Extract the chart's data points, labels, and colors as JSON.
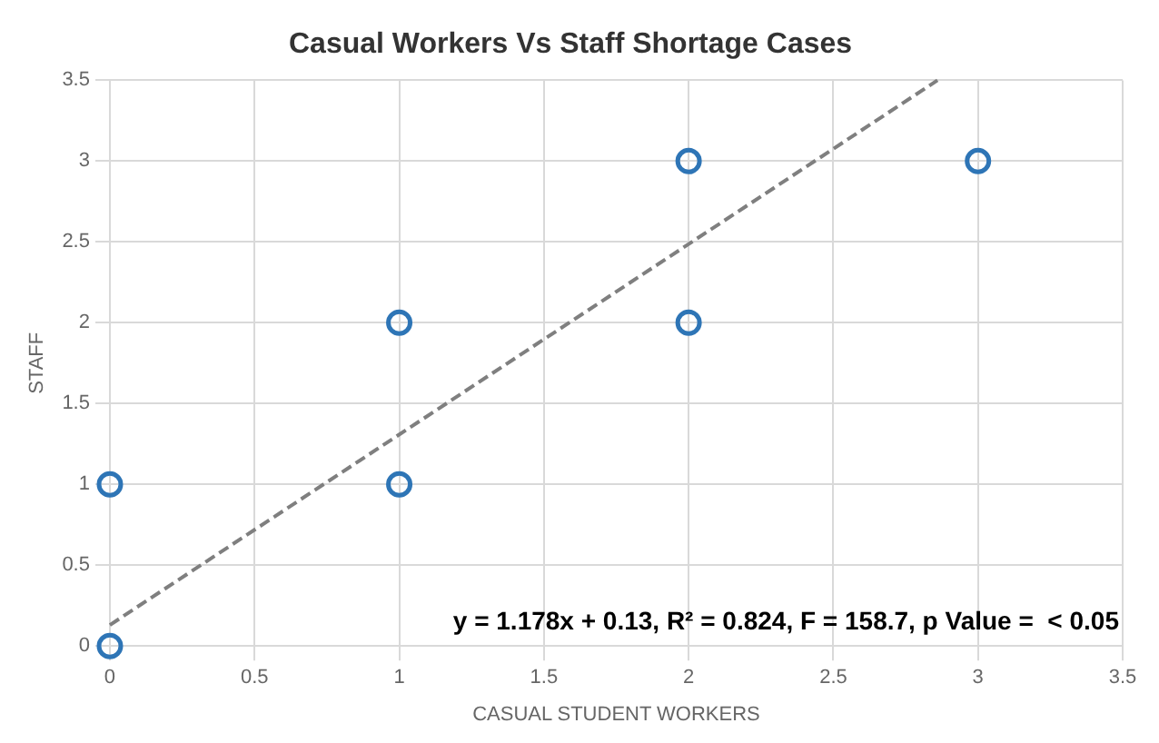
{
  "chart_data": {
    "type": "scatter",
    "title": "Casual Workers Vs Staff Shortage Cases",
    "xlabel": "CASUAL STUDENT WORKERS",
    "ylabel": "STAFF",
    "xlim": [
      0,
      3.5
    ],
    "xticks": [
      0,
      0.5,
      1,
      1.5,
      2,
      2.5,
      3,
      3.5
    ],
    "ylim": [
      0,
      3.5
    ],
    "yticks": [
      0,
      0.5,
      1,
      1.5,
      2,
      2.5,
      3,
      3.5
    ],
    "grid": true,
    "marker": "circle",
    "legend": false,
    "series": [
      {
        "color": "#2e75b6",
        "x": [
          0,
          0,
          1,
          1,
          2,
          2,
          3
        ],
        "values": [
          0,
          1,
          1,
          2,
          2,
          3,
          3
        ]
      },
      {
        "type": "line",
        "color": "#7f7f7f",
        "line_style": "dashed",
        "marker": "none",
        "x": [
          0,
          2.86
        ],
        "values": [
          0.13,
          3.5
        ]
      }
    ],
    "annotations": [
      "y = 1.178x + 0.13, R² = 0.824, F = 158.7, p Value =  < 0.05"
    ]
  }
}
